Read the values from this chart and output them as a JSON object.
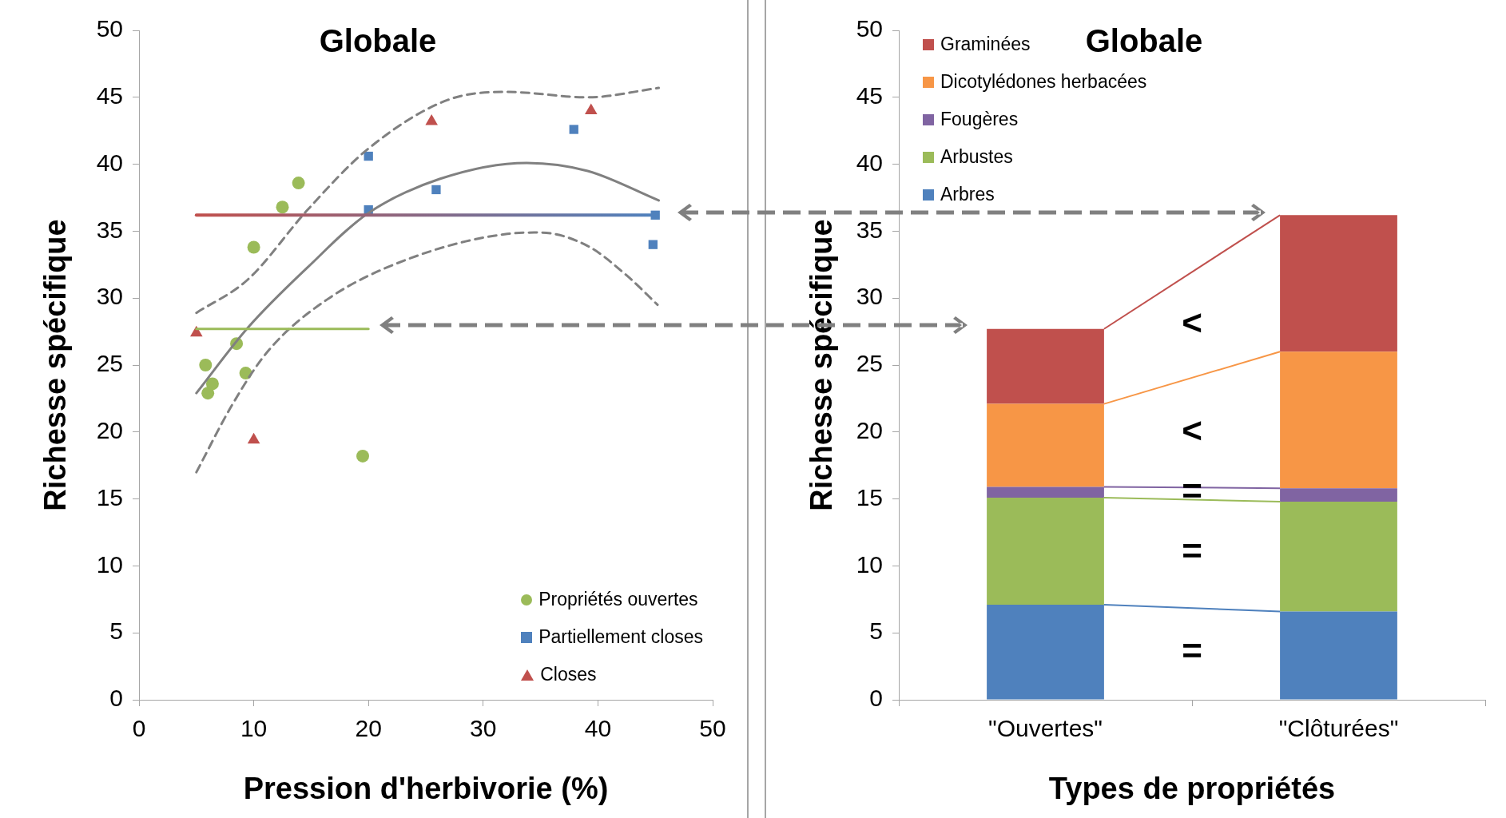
{
  "chart_data": [
    {
      "type": "scatter",
      "title": "Globale",
      "xlabel": "Pression d'herbivorie (%)",
      "ylabel": "Richesse spécifique",
      "xlim": [
        0,
        50
      ],
      "xticks": [
        0,
        10,
        20,
        30,
        40,
        50
      ],
      "ylim": [
        0,
        50
      ],
      "yticks": [
        0,
        5,
        10,
        15,
        20,
        25,
        30,
        35,
        40,
        45,
        50
      ],
      "grid": false,
      "legend": "bottom right",
      "series": [
        {
          "type": "line",
          "marker": "none",
          "line_style": "solid",
          "colors": [
            "#c0504d",
            "#4f81bd"
          ],
          "x": [
            5,
            45
          ],
          "values": [
            36.2,
            36.2
          ]
        },
        {
          "type": "line",
          "marker": "none",
          "line_style": "solid",
          "color": "#9bbb59",
          "x": [
            5,
            20
          ],
          "values": [
            27.7,
            27.7
          ]
        },
        {
          "type": "line",
          "marker": "none",
          "line_style": "solid",
          "color": "#808080",
          "x": [
            5,
            9.5,
            14.7,
            19.9,
            26.2,
            33.8,
            39.1,
            45.3
          ],
          "values": [
            22.9,
            27.8,
            32.3,
            36.3,
            38.9,
            40.1,
            39.5,
            37.3
          ]
        },
        {
          "type": "line",
          "marker": "none",
          "line_style": "dashed",
          "color": "#808080",
          "x": [
            5,
            9.5,
            14.7,
            19.9,
            26.9,
            32.1,
            39.1,
            45.3
          ],
          "values": [
            28.9,
            31.4,
            36.6,
            41.1,
            44.8,
            45.4,
            45.0,
            45.7
          ]
        },
        {
          "type": "line",
          "marker": "none",
          "line_style": "dashed",
          "color": "#808080",
          "x": [
            5,
            8.1,
            11.2,
            16.4,
            23.4,
            32.1,
            34.9,
            39.1,
            42.5,
            45.2
          ],
          "values": [
            17.0,
            22.0,
            26.0,
            29.9,
            32.9,
            34.8,
            34.9,
            33.9,
            31.7,
            29.5
          ]
        },
        {
          "name": "Propriétés ouvertes",
          "type": "scatter",
          "marker": "circle",
          "color": "#9bbb59",
          "x": [
            5.8,
            6.0,
            6.4,
            8.5,
            9.3,
            10.0,
            12.5,
            13.9,
            19.5
          ],
          "values": [
            25.0,
            22.9,
            23.6,
            26.6,
            24.4,
            33.8,
            36.8,
            38.6,
            18.2
          ]
        },
        {
          "name": "Partiellement closes",
          "type": "scatter",
          "marker": "square",
          "color": "#4f81bd",
          "x": [
            20.0,
            20.0,
            25.9,
            37.9,
            45.0,
            44.8
          ],
          "values": [
            40.6,
            36.6,
            38.1,
            42.6,
            36.2,
            34.0
          ]
        },
        {
          "name": "Closes",
          "type": "scatter",
          "marker": "triangle",
          "color": "#c0504d",
          "x": [
            5.0,
            10.0,
            25.5,
            39.4
          ],
          "values": [
            27.4,
            19.4,
            43.2,
            44.0
          ]
        }
      ]
    },
    {
      "type": "bar",
      "stacked": true,
      "title": "Globale",
      "xlabel": "Types de propriétés",
      "ylabel": "Richesse spécifique",
      "categories": [
        "\"Ouvertes\"",
        "\"Clôturées\""
      ],
      "ylim": [
        0,
        50
      ],
      "yticks": [
        0,
        5,
        10,
        15,
        20,
        25,
        30,
        35,
        40,
        45,
        50
      ],
      "grid": false,
      "legend": "top left",
      "series": [
        {
          "name": "Arbres",
          "color": "#4f81bd",
          "values": [
            7.1,
            6.6
          ]
        },
        {
          "name": "Arbustes",
          "color": "#9bbb59",
          "values": [
            8.0,
            8.2
          ]
        },
        {
          "name": "Fougères",
          "color": "#8064a2",
          "values": [
            0.8,
            1.0
          ]
        },
        {
          "name": "Dicotylédones herbacées",
          "color": "#f79646",
          "values": [
            6.2,
            10.2
          ]
        },
        {
          "name": "Graminées",
          "color": "#c0504d",
          "values": [
            5.6,
            10.2
          ]
        }
      ],
      "annotations": [
        "<",
        "<",
        "=",
        "=",
        "="
      ]
    }
  ]
}
